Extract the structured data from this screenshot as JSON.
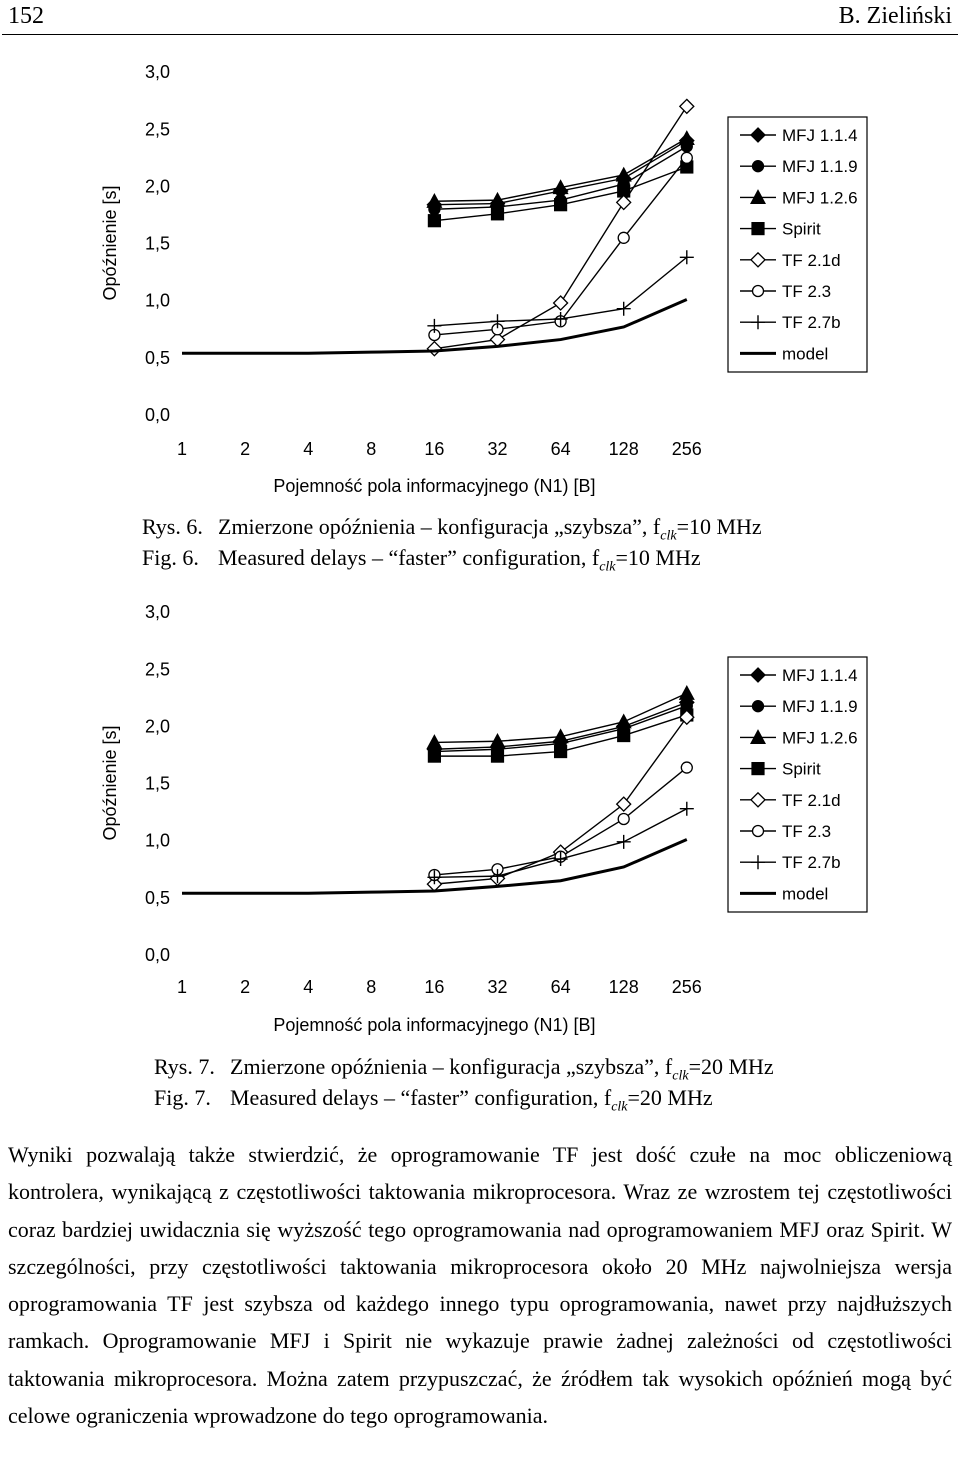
{
  "header": {
    "page_number": "152",
    "author": "B. Zieliński"
  },
  "chart_data": [
    {
      "type": "line",
      "ylabel": "Opóźnienie [s]",
      "xlabel": "Pojemność pola informacyjnego (N1) [B]",
      "categories": [
        "1",
        "2",
        "4",
        "8",
        "16",
        "32",
        "64",
        "128",
        "256"
      ],
      "yticks": [
        "0,0",
        "0,5",
        "1,0",
        "1,5",
        "2,0",
        "2,5",
        "3,0"
      ],
      "ylim": [
        0,
        3
      ],
      "grid": false,
      "legend_position": "right",
      "series": [
        {
          "name": "MFJ 1.1.4",
          "marker": "diamond-filled",
          "values": [
            null,
            null,
            null,
            null,
            1.84,
            1.85,
            1.96,
            2.07,
            2.4
          ]
        },
        {
          "name": "MFJ 1.1.9",
          "marker": "circle-filled",
          "values": [
            null,
            null,
            null,
            null,
            1.8,
            1.82,
            1.88,
            2.02,
            2.35
          ]
        },
        {
          "name": "MFJ 1.2.6",
          "marker": "triangle-filled",
          "values": [
            null,
            null,
            null,
            null,
            1.87,
            1.88,
            1.99,
            2.1,
            2.42
          ]
        },
        {
          "name": "Spirit",
          "marker": "square-filled",
          "values": [
            null,
            null,
            null,
            null,
            1.7,
            1.76,
            1.84,
            1.96,
            2.17
          ]
        },
        {
          "name": "TF 2.1d",
          "marker": "diamond-open",
          "values": [
            null,
            null,
            null,
            null,
            0.58,
            0.66,
            0.98,
            1.86,
            2.7
          ]
        },
        {
          "name": "TF 2.3",
          "marker": "circle-open",
          "values": [
            null,
            null,
            null,
            null,
            0.7,
            0.75,
            0.82,
            1.55,
            2.25
          ]
        },
        {
          "name": "TF 2.7b",
          "marker": "plus",
          "values": [
            null,
            null,
            null,
            null,
            0.78,
            0.82,
            0.84,
            0.93,
            1.38
          ]
        },
        {
          "name": "model",
          "marker": "none",
          "values": [
            0.54,
            0.54,
            0.54,
            0.55,
            0.56,
            0.6,
            0.66,
            0.77,
            1.01
          ]
        }
      ]
    },
    {
      "type": "line",
      "ylabel": "Opóźnienie [s]",
      "xlabel": "Pojemność pola informacyjnego (N1) [B]",
      "categories": [
        "1",
        "2",
        "4",
        "8",
        "16",
        "32",
        "64",
        "128",
        "256"
      ],
      "yticks": [
        "0,0",
        "0,5",
        "1,0",
        "1,5",
        "2,0",
        "2,5",
        "3,0"
      ],
      "ylim": [
        0,
        3
      ],
      "grid": false,
      "legend_position": "right",
      "series": [
        {
          "name": "MFJ 1.1.4",
          "marker": "diamond-filled",
          "values": [
            null,
            null,
            null,
            null,
            1.8,
            1.82,
            1.87,
            2.0,
            2.21
          ]
        },
        {
          "name": "MFJ 1.1.9",
          "marker": "circle-filled",
          "values": [
            null,
            null,
            null,
            null,
            1.78,
            1.8,
            1.85,
            1.98,
            2.18
          ]
        },
        {
          "name": "MFJ 1.2.6",
          "marker": "triangle-filled",
          "values": [
            null,
            null,
            null,
            null,
            1.86,
            1.87,
            1.91,
            2.04,
            2.29
          ]
        },
        {
          "name": "Spirit",
          "marker": "square-filled",
          "values": [
            null,
            null,
            null,
            null,
            1.74,
            1.74,
            1.78,
            1.92,
            2.1
          ]
        },
        {
          "name": "TF 2.1d",
          "marker": "diamond-open",
          "values": [
            null,
            null,
            null,
            null,
            0.62,
            0.67,
            0.9,
            1.32,
            2.08
          ]
        },
        {
          "name": "TF 2.3",
          "marker": "circle-open",
          "values": [
            null,
            null,
            null,
            null,
            0.7,
            0.75,
            0.86,
            1.19,
            1.64
          ]
        },
        {
          "name": "TF 2.7b",
          "marker": "plus",
          "values": [
            null,
            null,
            null,
            null,
            0.68,
            0.69,
            0.84,
            0.99,
            1.28
          ]
        },
        {
          "name": "model",
          "marker": "none",
          "values": [
            0.54,
            0.54,
            0.54,
            0.55,
            0.56,
            0.6,
            0.65,
            0.77,
            1.01
          ]
        }
      ]
    }
  ],
  "captions": [
    {
      "rys_label": "Rys. 6.",
      "rys_text": "Zmierzone opóźnienia – konfiguracja „szybsza”, f",
      "rys_sub": "clk",
      "rys_suffix": "=10 MHz",
      "fig_label": "Fig. 6.",
      "fig_text": "Measured delays – “faster” configuration, f",
      "fig_sub": "clk",
      "fig_suffix": "=10 MHz"
    },
    {
      "rys_label": "Rys. 7.",
      "rys_text": "Zmierzone opóźnienia – konfiguracja „szybsza”, f",
      "rys_sub": "clk",
      "rys_suffix": "=20 MHz",
      "fig_label": "Fig. 7.",
      "fig_text": "Measured delays – “faster” configuration, f",
      "fig_sub": "clk",
      "fig_suffix": "=20 MHz"
    }
  ],
  "body_text": "Wyniki pozwalają także stwierdzić, że oprogramowanie TF jest dość czułe na moc obliczeniową kontrolera, wynikającą z częstotliwości taktowania mikroprocesora. Wraz ze wzrostem tej częstotliwości coraz bardziej uwidacznia się wyższość tego oprogramowania nad oprogramowaniem MFJ oraz Spirit. W szczególności, przy częstotliwości taktowania mikroprocesora około 20 MHz najwolniejsza wersja oprogramowania TF jest szybsza od każdego innego typu oprogramowania, nawet przy najdłuższych ramkach. Oprogramowanie MFJ i Spirit nie wykazuje prawie żadnej zależności od częstotliwości taktowania mikroprocesora. Można zatem przypuszczać, że źródłem tak wysokich opóźnień mogą być celowe ograniczenia wprowadzone do tego oprogramowania."
}
